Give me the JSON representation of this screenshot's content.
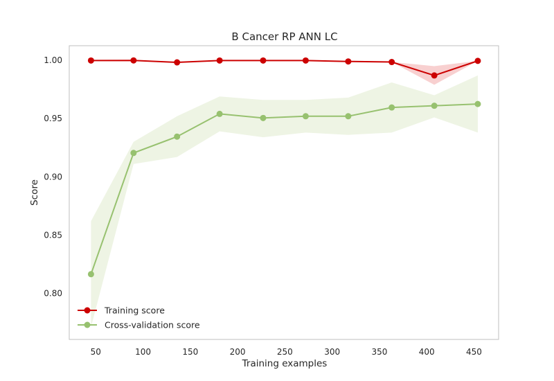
{
  "chart_data": {
    "type": "line",
    "title": "B Cancer RP ANN LC",
    "xlabel": "Training examples",
    "ylabel": "Score",
    "xlim": [
      22,
      476
    ],
    "ylim": [
      0.7605,
      1.0125
    ],
    "xticks": [
      50,
      100,
      150,
      200,
      250,
      300,
      350,
      400,
      450
    ],
    "xtick_labels": [
      "50",
      "100",
      "150",
      "200",
      "250",
      "300",
      "350",
      "400",
      "450"
    ],
    "yticks": [
      0.8,
      0.85,
      0.9,
      0.95,
      1.0
    ],
    "ytick_labels": [
      "0.80",
      "0.85",
      "0.90",
      "0.95",
      "1.00"
    ],
    "grid": false,
    "legend_position": "lower-left",
    "x": [
      45,
      90,
      136,
      181,
      227,
      272,
      317,
      363,
      408,
      454
    ],
    "series": [
      {
        "name": "Training score",
        "color": "#cc0000",
        "band_color": "#f8d0d0",
        "values": [
          0.9998,
          0.9999,
          0.9982,
          0.9998,
          0.9998,
          0.9998,
          0.999,
          0.9985,
          0.987,
          0.9995
        ],
        "lower": [
          0.9998,
          0.9999,
          0.9982,
          0.9998,
          0.9998,
          0.9998,
          0.999,
          0.9985,
          0.979,
          0.9995
        ],
        "upper": [
          0.9998,
          0.9999,
          0.9982,
          0.9998,
          0.9998,
          0.9998,
          0.999,
          0.9985,
          0.995,
          0.9995
        ]
      },
      {
        "name": "Cross-validation score",
        "color": "#97c16f",
        "band_color": "#eef4e4",
        "values": [
          0.8165,
          0.9205,
          0.9345,
          0.954,
          0.9505,
          0.952,
          0.952,
          0.9595,
          0.961,
          0.9625
        ],
        "lower": [
          0.771,
          0.911,
          0.917,
          0.939,
          0.934,
          0.938,
          0.936,
          0.938,
          0.951,
          0.938
        ],
        "upper": [
          0.862,
          0.93,
          0.952,
          0.969,
          0.966,
          0.966,
          0.968,
          0.981,
          0.97,
          0.987
        ]
      }
    ]
  }
}
